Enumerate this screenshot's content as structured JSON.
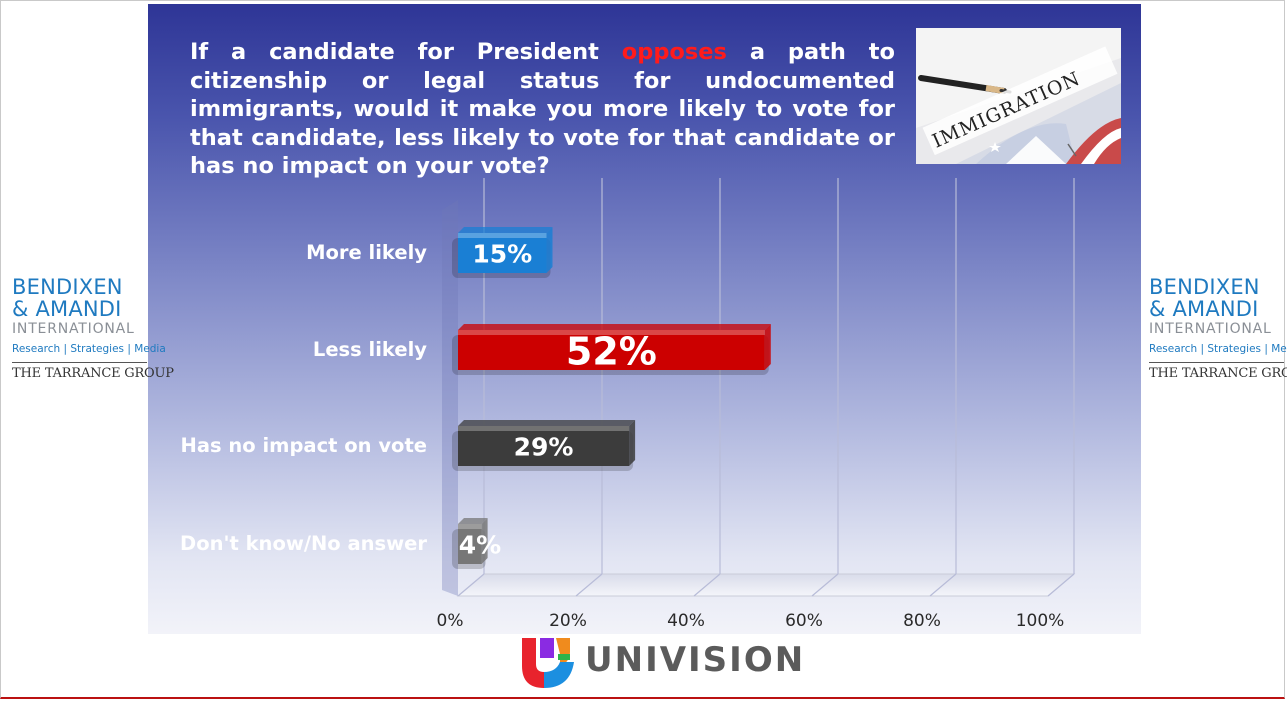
{
  "question": {
    "before": "If a candidate for President ",
    "highlight": "opposes",
    "after": " a path to citizenship or legal status for undocumented immigrants, would it make you more likely to vote for that candidate, less likely to vote for that candidate or has no impact on your vote?"
  },
  "photo": {
    "label": "IMMIGRATION"
  },
  "logo": {
    "line1": "BENDIXEN",
    "line2": "& AMANDI",
    "line3": "INTERNATIONAL",
    "line4": "Research | Strategies | Media",
    "line5": "THE TARRANCE GROUP"
  },
  "footer": {
    "brand": "UNIVISION"
  },
  "colors": {
    "more_likely": "#1a7fd4",
    "less_likely": "#cc0000",
    "no_impact": "#3c3c3c",
    "dont_know": "#777777",
    "highlight": "#ff1b1b"
  },
  "chart_data": {
    "type": "bar",
    "orientation": "horizontal",
    "categories": [
      "More likely",
      "Less likely",
      "Has no impact on vote",
      "Don't know/No answer"
    ],
    "values": [
      15,
      52,
      29,
      4
    ],
    "value_labels": [
      "15%",
      "52%",
      "29%",
      "4%"
    ],
    "xlim": [
      0,
      100
    ],
    "x_ticks": [
      0,
      20,
      40,
      60,
      80,
      100
    ],
    "x_tick_labels": [
      "0%",
      "20%",
      "40%",
      "60%",
      "80%",
      "100%"
    ],
    "grid": true,
    "legend": "none"
  }
}
